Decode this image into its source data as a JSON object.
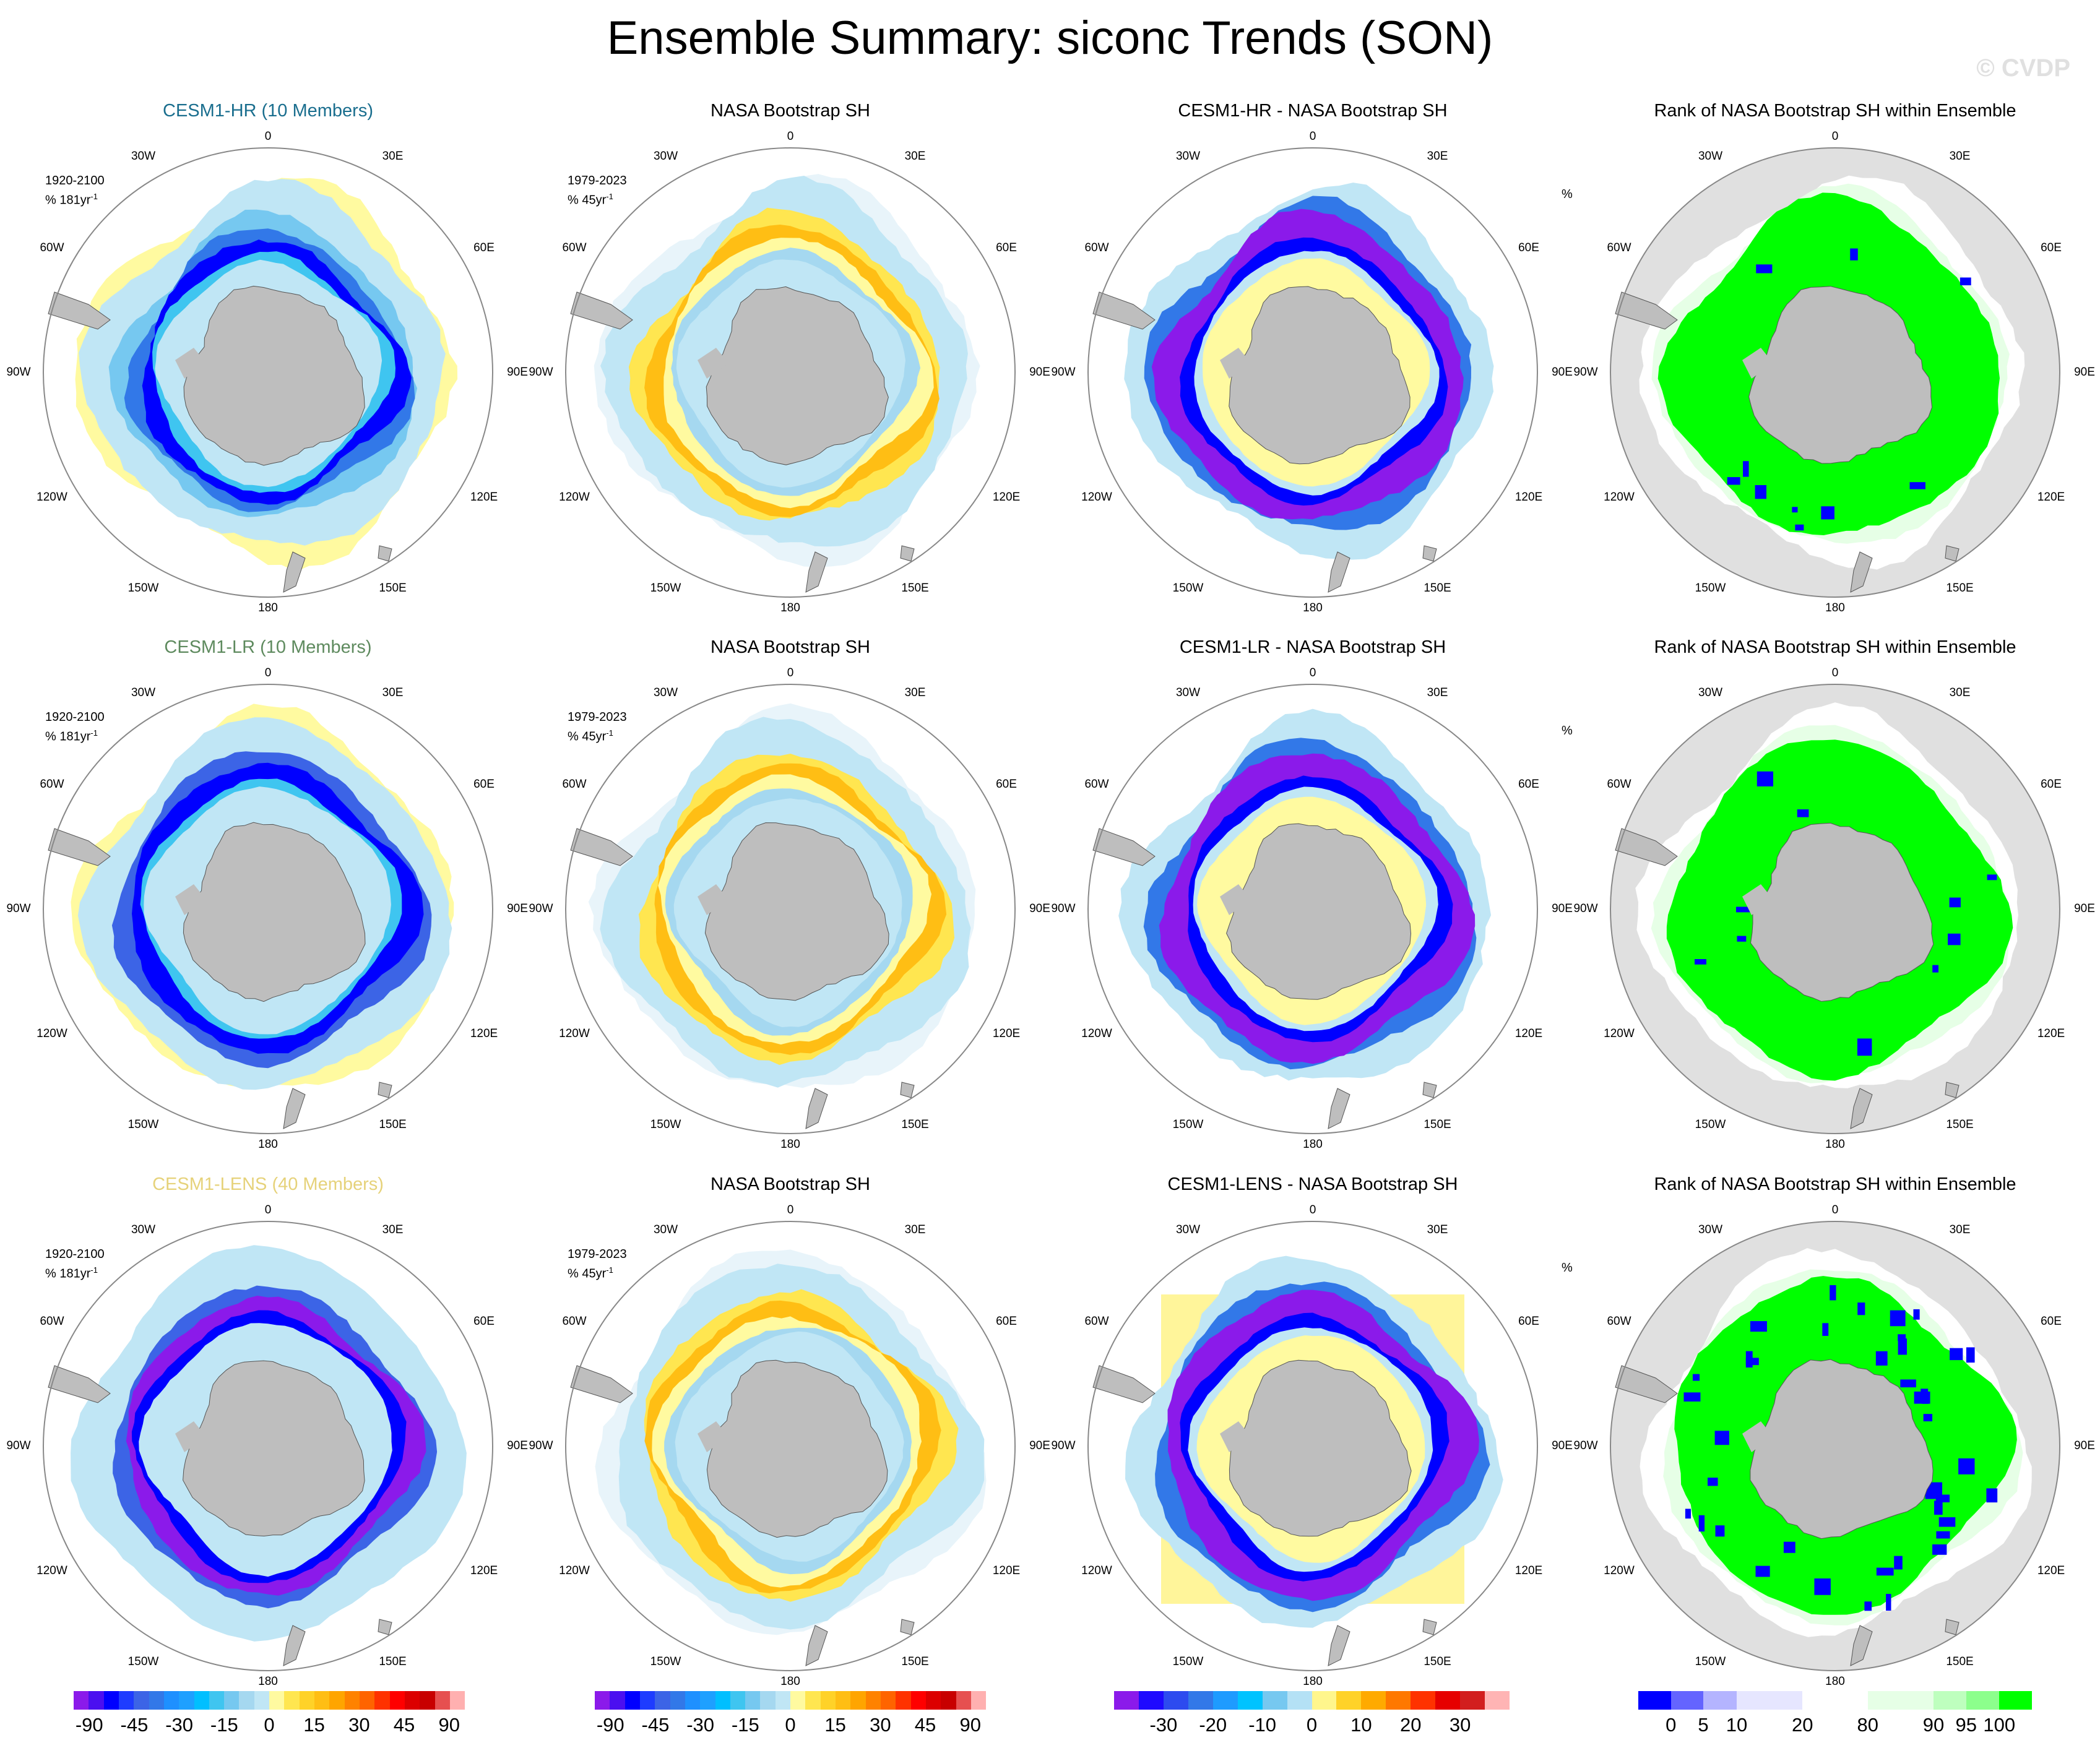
{
  "title": "Ensemble Summary: siconc Trends (SON)",
  "watermark": "© CVDP",
  "lon_labels": [
    "0",
    "30E",
    "60E",
    "90E",
    "120E",
    "150E",
    "180",
    "150W",
    "120W",
    "90W",
    "60W",
    "30W"
  ],
  "rows": [
    {
      "model_title": "CESM1-HR (10 Members)",
      "model_color": "#1a6e8e",
      "model_kind": "hr",
      "obs_title": "NASA Bootstrap SH",
      "diff_title": "CESM1-HR - NASA Bootstrap SH",
      "rank_title": "Rank of NASA Bootstrap SH within Ensemble"
    },
    {
      "model_title": "CESM1-LR (10 Members)",
      "model_color": "#5e8a5e",
      "model_kind": "lr",
      "obs_title": "NASA Bootstrap SH",
      "diff_title": "CESM1-LR - NASA Bootstrap SH",
      "rank_title": "Rank of NASA Bootstrap SH within Ensemble"
    },
    {
      "model_title": "CESM1-LENS (40 Members)",
      "model_color": "#e6d27a",
      "model_kind": "lens",
      "obs_title": "NASA Bootstrap SH",
      "diff_title": "CESM1-LENS - NASA Bootstrap SH",
      "rank_title": "Rank of NASA Bootstrap SH within Ensemble"
    }
  ],
  "model_annot": {
    "period": "1920-2100",
    "units": "% 181yr",
    "exp": "-1"
  },
  "obs_annot": {
    "period": "1979-2023",
    "units": "% 45yr",
    "exp": "-1"
  },
  "rank_annot": {
    "units": "%"
  },
  "colorbars": [
    {
      "name": "model-trend",
      "labels": [
        "-90",
        "-45",
        "-30",
        "-15",
        "0",
        "15",
        "30",
        "45",
        "90"
      ],
      "colors": [
        "#8b1aea",
        "#4b0ff0",
        "#0000ff",
        "#1e3cff",
        "#3c64e6",
        "#3278e8",
        "#1e90ff",
        "#1ea0ff",
        "#00bfff",
        "#3fc5f0",
        "#76c8f0",
        "#a5d8f0",
        "#c0e6f5",
        "#fffaa0",
        "#ffe650",
        "#ffd228",
        "#ffbe14",
        "#ffa500",
        "#ff8200",
        "#ff6400",
        "#ff3200",
        "#ff0000",
        "#dc0000",
        "#c80000",
        "#e65050",
        "#ffb0b0"
      ]
    },
    {
      "name": "obs-trend",
      "labels": [
        "-90",
        "-45",
        "-30",
        "-15",
        "0",
        "15",
        "30",
        "45",
        "90"
      ],
      "colors": [
        "#8b1aea",
        "#4b0ff0",
        "#0000ff",
        "#1e3cff",
        "#3c64e6",
        "#3278e8",
        "#1e90ff",
        "#1ea0ff",
        "#00bfff",
        "#3fc5f0",
        "#76c8f0",
        "#a5d8f0",
        "#c0e6f5",
        "#fffaa0",
        "#ffe650",
        "#ffd228",
        "#ffbe14",
        "#ffa500",
        "#ff8200",
        "#ff6400",
        "#ff3200",
        "#ff0000",
        "#dc0000",
        "#c80000",
        "#e65050",
        "#ffb0b0"
      ]
    },
    {
      "name": "difference",
      "labels": [
        "-30",
        "-20",
        "-10",
        "0",
        "10",
        "20",
        "30"
      ],
      "colors": [
        "#8b1aea",
        "#1e0aff",
        "#2d4bef",
        "#3278e8",
        "#1e9bff",
        "#00c3ff",
        "#76c8f0",
        "#b4e1f5",
        "#fff68c",
        "#ffd228",
        "#ffaa00",
        "#ff7800",
        "#ff3200",
        "#e60000",
        "#d21e1e",
        "#ffb4b4"
      ]
    },
    {
      "name": "rank",
      "labels": [
        "0",
        "5",
        "10",
        "20",
        "80",
        "90",
        "95",
        "100"
      ],
      "colors": [
        "#0000ff",
        "#6464ff",
        "#b4b4ff",
        "#e6e6ff",
        "#ffffff",
        "#e6ffe6",
        "#beffbe",
        "#8cff8c",
        "#00ff00"
      ],
      "edges": [
        0,
        0.083,
        0.165,
        0.25,
        0.417,
        0.583,
        0.75,
        0.833,
        0.917,
        1
      ]
    }
  ]
}
